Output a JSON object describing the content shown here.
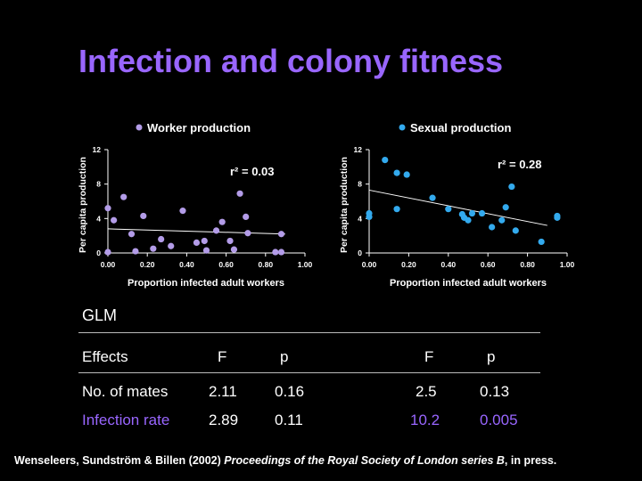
{
  "title": "Infection and colony fitness",
  "colors": {
    "worker": "#b39ce8",
    "sexual": "#33aaee",
    "title": "#9966ff"
  },
  "chart_data": [
    {
      "type": "scatter",
      "legend": "Worker production",
      "legend_position": "top",
      "xlabel": "Proportion infected adult workers",
      "ylabel": "Per capita production",
      "xlim": [
        0,
        1
      ],
      "ylim": [
        0,
        12
      ],
      "x_ticks": [
        "0.00",
        "0.20",
        "0.40",
        "0.60",
        "0.80",
        "1.00"
      ],
      "y_ticks": [
        "12",
        "8",
        "4",
        "0"
      ],
      "annotation": "r² = 0.03",
      "trendline": [
        [
          0.0,
          2.8
        ],
        [
          0.9,
          2.2
        ]
      ],
      "points": [
        [
          0.0,
          5.2
        ],
        [
          0.0,
          0.1
        ],
        [
          0.03,
          3.8
        ],
        [
          0.08,
          6.5
        ],
        [
          0.12,
          2.2
        ],
        [
          0.14,
          0.2
        ],
        [
          0.18,
          4.3
        ],
        [
          0.23,
          0.5
        ],
        [
          0.27,
          1.6
        ],
        [
          0.32,
          0.8
        ],
        [
          0.38,
          4.9
        ],
        [
          0.45,
          1.2
        ],
        [
          0.49,
          1.4
        ],
        [
          0.5,
          0.3
        ],
        [
          0.55,
          2.6
        ],
        [
          0.58,
          3.6
        ],
        [
          0.62,
          1.4
        ],
        [
          0.64,
          0.4
        ],
        [
          0.67,
          6.9
        ],
        [
          0.7,
          4.2
        ],
        [
          0.71,
          2.3
        ],
        [
          0.85,
          0.1
        ],
        [
          0.88,
          2.2
        ],
        [
          0.88,
          0.1
        ]
      ],
      "grid": false
    },
    {
      "type": "scatter",
      "legend": "Sexual production",
      "legend_position": "top",
      "xlabel": "Proportion infected adult workers",
      "ylabel": "Per capita production",
      "xlim": [
        0,
        1
      ],
      "ylim": [
        0,
        12
      ],
      "x_ticks": [
        "0.00",
        "0.20",
        "0.40",
        "0.60",
        "0.80",
        "1.00"
      ],
      "y_ticks": [
        "12",
        "8",
        "4",
        "0"
      ],
      "annotation": "r² = 0.28",
      "trendline": [
        [
          0.0,
          7.3
        ],
        [
          0.9,
          3.2
        ]
      ],
      "points": [
        [
          0.0,
          4.6
        ],
        [
          0.0,
          4.2
        ],
        [
          0.08,
          10.8
        ],
        [
          0.14,
          9.3
        ],
        [
          0.14,
          5.1
        ],
        [
          0.19,
          9.1
        ],
        [
          0.32,
          6.4
        ],
        [
          0.4,
          5.1
        ],
        [
          0.47,
          4.5
        ],
        [
          0.48,
          4.1
        ],
        [
          0.5,
          3.8
        ],
        [
          0.52,
          4.6
        ],
        [
          0.57,
          4.6
        ],
        [
          0.62,
          3.0
        ],
        [
          0.67,
          3.8
        ],
        [
          0.69,
          5.3
        ],
        [
          0.72,
          7.7
        ],
        [
          0.74,
          2.6
        ],
        [
          0.87,
          1.3
        ],
        [
          0.95,
          4.3
        ],
        [
          0.95,
          4.1
        ]
      ],
      "grid": false
    }
  ],
  "glm": {
    "heading": "GLM",
    "headers": [
      "Effects",
      "F",
      "p",
      "F",
      "p"
    ],
    "rows": [
      {
        "effect": "No. of  mates",
        "f1": "2.11",
        "p1": "0.16",
        "f2": "2.5",
        "p2": "0.13"
      },
      {
        "effect": "Infection rate",
        "f1": "2.89",
        "p1": "0.11",
        "f2": "10.2",
        "p2": "0.005"
      }
    ]
  },
  "citation": {
    "authors": "Wenseleers, Sundström & Billen (2002) ",
    "journal": "Proceedings of the Royal Society of London series B",
    "suffix": ", in press."
  }
}
